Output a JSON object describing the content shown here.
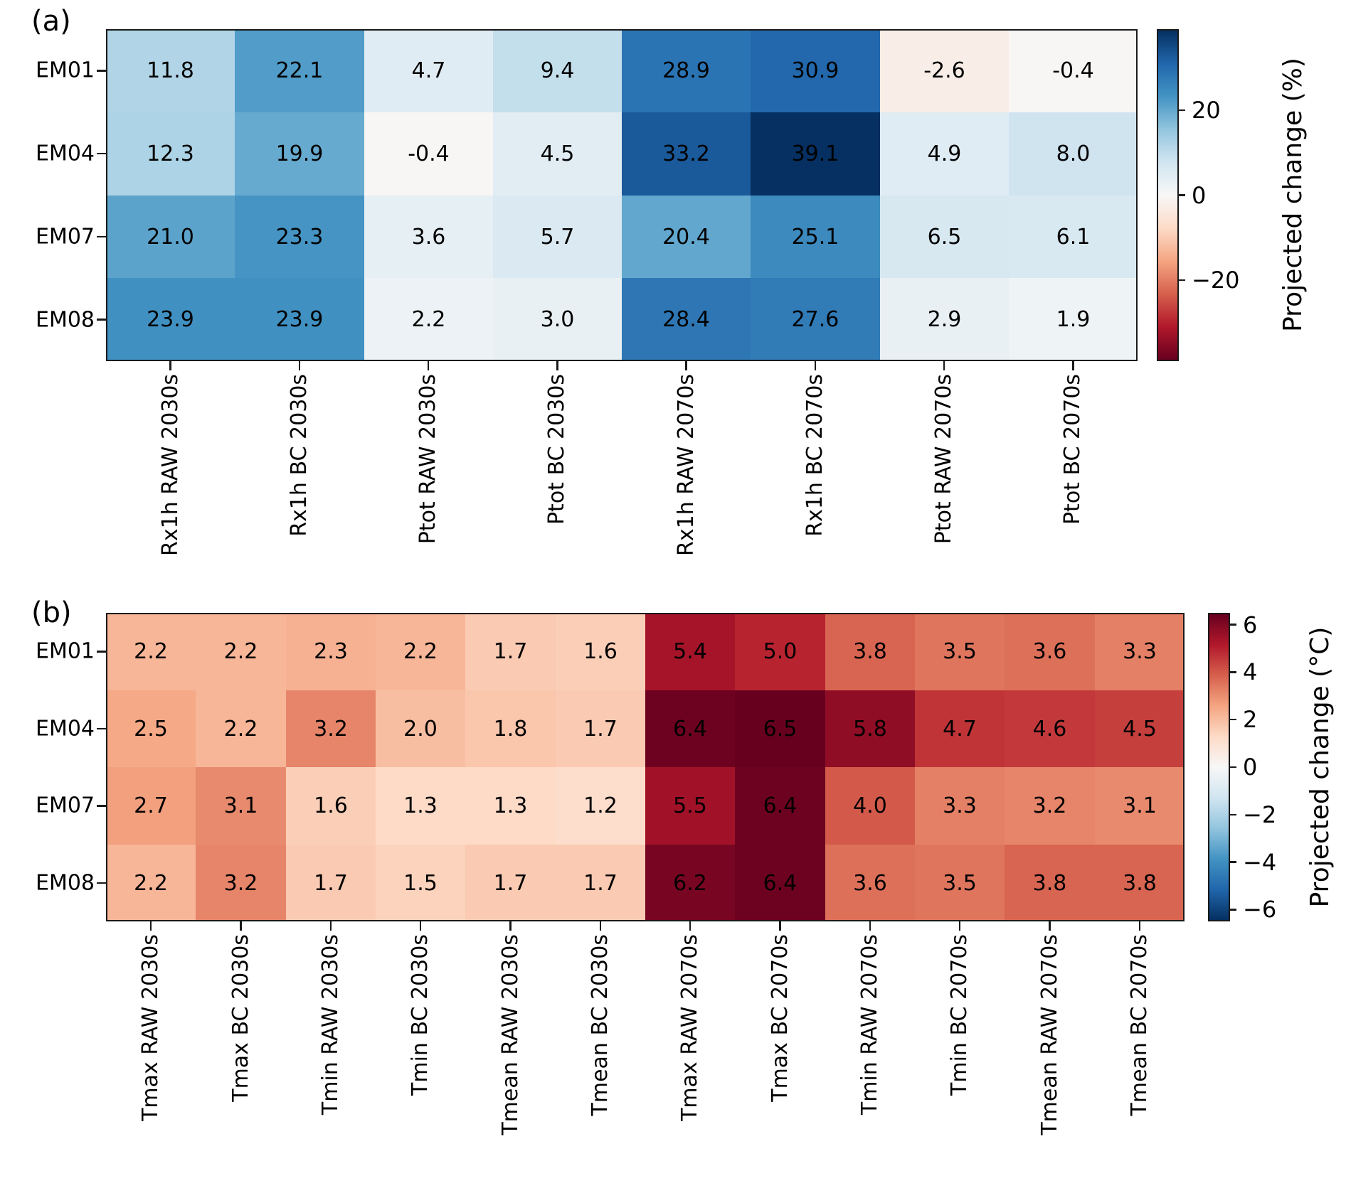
{
  "chart_data": [
    {
      "panel_label": "(a)",
      "type": "heatmap",
      "rows": [
        "EM01",
        "EM04",
        "EM07",
        "EM08"
      ],
      "columns": [
        "Rx1h RAW 2030s",
        "Rx1h BC 2030s",
        "Ptot RAW 2030s",
        "Ptot BC 2030s",
        "Rx1h RAW 2070s",
        "Rx1h BC 2070s",
        "Ptot RAW 2070s",
        "Ptot BC 2070s"
      ],
      "values": [
        [
          11.8,
          22.1,
          4.7,
          9.4,
          28.9,
          30.9,
          -2.6,
          -0.4
        ],
        [
          12.3,
          19.9,
          -0.4,
          4.5,
          33.2,
          39.1,
          4.9,
          8.0
        ],
        [
          21.0,
          23.3,
          3.6,
          5.7,
          20.4,
          25.1,
          6.5,
          6.1
        ],
        [
          23.9,
          23.9,
          2.2,
          3.0,
          28.4,
          27.6,
          2.9,
          1.9
        ]
      ],
      "annotation_decimals": 1,
      "colorbar": {
        "label": "Projected change (%)",
        "tick_labels": [
          "20",
          "0",
          "−20"
        ],
        "tick_values": [
          20,
          0,
          -20
        ],
        "vmin": -39.1,
        "vmax": 39.1,
        "cmap": "RdBu",
        "cmap_reversed": false
      }
    },
    {
      "panel_label": "(b)",
      "type": "heatmap",
      "rows": [
        "EM01",
        "EM04",
        "EM07",
        "EM08"
      ],
      "columns": [
        "Tmax RAW 2030s",
        "Tmax BC 2030s",
        "Tmin RAW 2030s",
        "Tmin BC 2030s",
        "Tmean RAW 2030s",
        "Tmean BC 2030s",
        "Tmax RAW 2070s",
        "Tmax BC 2070s",
        "Tmin RAW 2070s",
        "Tmin BC 2070s",
        "Tmean RAW 2070s",
        "Tmean BC 2070s"
      ],
      "values": [
        [
          2.2,
          2.2,
          2.3,
          2.2,
          1.7,
          1.6,
          5.4,
          5.0,
          3.8,
          3.5,
          3.6,
          3.3
        ],
        [
          2.5,
          2.2,
          3.2,
          2.0,
          1.8,
          1.7,
          6.4,
          6.5,
          5.8,
          4.7,
          4.6,
          4.5
        ],
        [
          2.7,
          3.1,
          1.6,
          1.3,
          1.3,
          1.2,
          5.5,
          6.4,
          4.0,
          3.3,
          3.2,
          3.1
        ],
        [
          2.2,
          3.2,
          1.7,
          1.5,
          1.7,
          1.7,
          6.2,
          6.4,
          3.6,
          3.5,
          3.8,
          3.8
        ]
      ],
      "annotation_decimals": 1,
      "colorbar": {
        "label": "Projected change (°C)",
        "tick_labels": [
          "6",
          "4",
          "2",
          "0",
          "−2",
          "−4",
          "−6"
        ],
        "tick_values": [
          6,
          4,
          2,
          0,
          -2,
          -4,
          -6
        ],
        "vmin": -6.5,
        "vmax": 6.5,
        "cmap": "RdBu",
        "cmap_reversed": true
      }
    }
  ],
  "colors": {
    "rdbu_anchors": [
      "#67001f",
      "#b2182b",
      "#d6604d",
      "#f4a582",
      "#fddbc7",
      "#f7f7f7",
      "#d1e5f0",
      "#92c5de",
      "#4393c3",
      "#2166ac",
      "#053061"
    ],
    "cell_text": "#000000",
    "axis": "#1a1a1a",
    "background": "#ffffff"
  }
}
